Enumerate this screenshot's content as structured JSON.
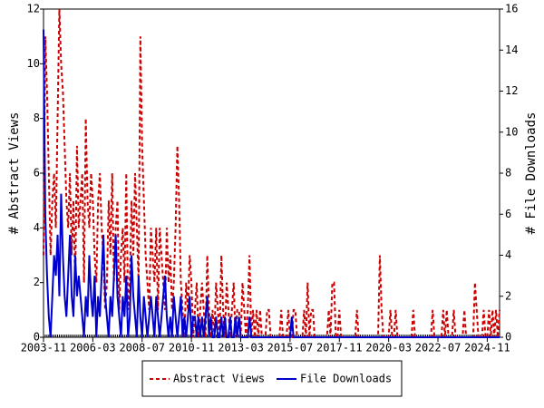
{
  "chart_data": {
    "type": "line",
    "x": [
      "2003-11",
      "2003-12",
      "2004-01",
      "2004-02",
      "2004-03",
      "2004-04",
      "2004-05",
      "2004-06",
      "2004-07",
      "2004-08",
      "2004-09",
      "2004-10",
      "2004-11",
      "2004-12",
      "2005-01",
      "2005-02",
      "2005-03",
      "2005-04",
      "2005-05",
      "2005-06",
      "2005-07",
      "2005-08",
      "2005-09",
      "2005-10",
      "2005-11",
      "2005-12",
      "2006-01",
      "2006-02",
      "2006-03",
      "2006-04",
      "2006-05",
      "2006-06",
      "2006-07",
      "2006-08",
      "2006-09",
      "2006-10",
      "2006-11",
      "2006-12",
      "2007-01",
      "2007-02",
      "2007-03",
      "2007-04",
      "2007-05",
      "2007-06",
      "2007-07",
      "2007-08",
      "2007-09",
      "2007-10",
      "2007-11",
      "2007-12",
      "2008-01",
      "2008-02",
      "2008-03",
      "2008-04",
      "2008-05",
      "2008-06",
      "2008-07",
      "2008-08",
      "2008-09",
      "2008-10",
      "2008-11",
      "2008-12",
      "2009-01",
      "2009-02",
      "2009-03",
      "2009-04",
      "2009-05",
      "2009-06",
      "2009-07",
      "2009-08",
      "2009-09",
      "2009-10",
      "2009-11",
      "2009-12",
      "2010-01",
      "2010-02",
      "2010-03",
      "2010-04",
      "2010-05",
      "2010-06",
      "2010-07",
      "2010-08",
      "2010-09",
      "2010-10",
      "2010-11",
      "2010-12",
      "2011-01",
      "2011-02",
      "2011-03",
      "2011-04",
      "2011-05",
      "2011-06",
      "2011-07",
      "2011-08",
      "2011-09",
      "2011-10",
      "2011-11",
      "2011-12",
      "2012-01",
      "2012-02",
      "2012-03",
      "2012-04",
      "2012-05",
      "2012-06",
      "2012-07",
      "2012-08",
      "2012-09",
      "2012-10",
      "2012-11",
      "2012-12",
      "2013-01",
      "2013-02",
      "2013-03",
      "2013-04",
      "2013-05",
      "2013-06",
      "2013-07",
      "2013-08",
      "2013-09",
      "2013-10",
      "2013-11",
      "2013-12",
      "2014-01",
      "2014-02",
      "2014-03",
      "2014-04",
      "2014-05",
      "2014-06",
      "2014-07",
      "2014-08",
      "2014-09",
      "2014-10",
      "2014-11",
      "2014-12",
      "2015-01",
      "2015-02",
      "2015-03",
      "2015-04",
      "2015-05",
      "2015-06",
      "2015-07",
      "2015-08",
      "2015-09",
      "2015-10",
      "2015-11",
      "2015-12",
      "2016-01",
      "2016-02",
      "2016-03",
      "2016-04",
      "2016-05",
      "2016-06",
      "2016-07",
      "2016-08",
      "2016-09",
      "2016-10",
      "2016-11",
      "2016-12",
      "2017-01",
      "2017-02",
      "2017-03",
      "2017-04",
      "2017-05",
      "2017-06",
      "2017-07",
      "2017-08",
      "2017-09",
      "2017-10",
      "2017-11",
      "2017-12",
      "2018-01",
      "2018-02",
      "2018-03",
      "2018-04",
      "2018-05",
      "2018-06",
      "2018-07",
      "2018-08",
      "2018-09",
      "2018-10",
      "2018-11",
      "2018-12",
      "2019-01",
      "2019-02",
      "2019-03",
      "2019-04",
      "2019-05",
      "2019-06",
      "2019-07",
      "2019-08",
      "2019-09",
      "2019-10",
      "2019-11",
      "2019-12",
      "2020-01",
      "2020-02",
      "2020-03",
      "2020-04",
      "2020-05",
      "2020-06",
      "2020-07",
      "2020-08",
      "2020-09",
      "2020-10",
      "2020-11",
      "2020-12",
      "2021-01",
      "2021-02",
      "2021-03",
      "2021-04",
      "2021-05",
      "2021-06",
      "2021-07",
      "2021-08",
      "2021-09",
      "2021-10",
      "2021-11",
      "2021-12",
      "2022-01",
      "2022-02",
      "2022-03",
      "2022-04",
      "2022-05",
      "2022-06",
      "2022-07",
      "2022-08",
      "2022-09",
      "2022-10",
      "2022-11",
      "2022-12",
      "2023-01",
      "2023-02",
      "2023-03",
      "2023-04",
      "2023-05",
      "2023-06",
      "2023-07",
      "2023-08",
      "2023-09",
      "2023-10",
      "2023-11",
      "2023-12",
      "2024-01",
      "2024-02",
      "2024-03",
      "2024-04",
      "2024-05",
      "2024-06",
      "2024-07",
      "2024-08",
      "2024-09",
      "2024-10",
      "2024-11",
      "2024-12",
      "2025-01",
      "2025-02",
      "2025-03",
      "2025-04",
      "2025-05",
      "2025-06"
    ],
    "xticks": [
      "2003-11",
      "2006-03",
      "2008-07",
      "2010-11",
      "2013-03",
      "2015-07",
      "2017-11",
      "2020-03",
      "2022-07",
      "2024-11"
    ],
    "ylabel": "# Abstract Views",
    "y2label": "# File Downloads",
    "ylim": [
      0,
      12
    ],
    "yticks": [
      0,
      2,
      4,
      6,
      8,
      10,
      12
    ],
    "y2lim": [
      0,
      16
    ],
    "y2ticks": [
      0,
      2,
      4,
      6,
      8,
      10,
      12,
      14,
      16
    ],
    "series": [
      {
        "name": "Abstract Views",
        "color": "#cc0000",
        "dashed": true,
        "values": [
          3,
          11,
          9,
          6,
          3,
          5,
          6,
          4,
          8,
          12,
          10,
          9,
          7,
          5,
          4,
          6,
          3,
          5,
          2,
          7,
          4,
          5,
          6,
          2,
          8,
          5,
          4,
          6,
          5,
          3,
          2,
          5,
          6,
          4,
          3,
          1,
          2,
          5,
          3,
          6,
          2,
          4,
          5,
          1,
          3,
          4,
          2,
          6,
          1,
          2,
          5,
          3,
          6,
          4,
          2,
          11,
          7,
          5,
          3,
          2,
          1,
          4,
          3,
          2,
          4,
          1,
          4,
          3,
          2,
          1,
          4,
          2,
          3,
          1,
          2,
          4,
          7,
          5,
          2,
          1,
          0,
          2,
          1,
          3,
          2,
          0,
          1,
          2,
          0,
          1,
          2,
          1,
          0,
          3,
          1,
          0,
          1,
          0,
          2,
          1,
          0,
          3,
          1,
          0,
          2,
          1,
          0,
          1,
          2,
          0,
          1,
          1,
          0,
          2,
          1,
          0,
          1,
          3,
          0,
          1,
          0,
          1,
          0,
          1,
          0,
          0,
          0,
          1,
          1,
          0,
          0,
          0,
          0,
          0,
          0,
          1,
          0,
          0,
          0,
          1,
          0,
          0,
          1,
          1,
          0,
          0,
          0,
          0,
          1,
          0,
          2,
          0,
          1,
          1,
          0,
          0,
          0,
          0,
          0,
          0,
          0,
          0,
          1,
          0,
          2,
          2,
          0,
          0,
          1,
          0,
          0,
          0,
          0,
          0,
          0,
          0,
          0,
          0,
          1,
          0,
          0,
          0,
          0,
          0,
          0,
          0,
          0,
          0,
          0,
          0,
          0,
          3,
          1,
          0,
          0,
          0,
          0,
          1,
          0,
          0,
          1,
          0,
          0,
          0,
          0,
          0,
          0,
          0,
          0,
          0,
          1,
          0,
          0,
          0,
          0,
          0,
          0,
          0,
          0,
          0,
          0,
          1,
          0,
          0,
          0,
          0,
          0,
          1,
          0,
          1,
          0,
          0,
          0,
          1,
          0,
          0,
          0,
          0,
          0,
          1,
          0,
          0,
          0,
          0,
          0,
          2,
          1,
          0,
          0,
          0,
          1,
          0,
          0,
          1,
          0,
          1,
          0,
          1,
          0,
          1
        ]
      },
      {
        "name": "File Downloads",
        "color": "#0000cc",
        "axis": "y2",
        "values": [
          15,
          6,
          3,
          1,
          0,
          2,
          4,
          3,
          5,
          2,
          7,
          4,
          2,
          1,
          3,
          5,
          2,
          1,
          4,
          2,
          3,
          2,
          1,
          0,
          2,
          1,
          4,
          2,
          1,
          3,
          0,
          2,
          1,
          3,
          5,
          2,
          1,
          0,
          2,
          1,
          3,
          5,
          2,
          1,
          0,
          2,
          1,
          3,
          0,
          1,
          4,
          2,
          1,
          0,
          3,
          1,
          0,
          2,
          1,
          0,
          1,
          2,
          1,
          0,
          2,
          1,
          0,
          1,
          2,
          3,
          1,
          0,
          1,
          0,
          2,
          1,
          0,
          1,
          2,
          0,
          1,
          0,
          1,
          2,
          0,
          1,
          1,
          0,
          1,
          0,
          1,
          0,
          1,
          2,
          0,
          1,
          0,
          0,
          1,
          0,
          0,
          1,
          0,
          1,
          0,
          0,
          1,
          0,
          0,
          1,
          0,
          1,
          0,
          0,
          0,
          0,
          0,
          1,
          0,
          0,
          0,
          0,
          0,
          0,
          0,
          0,
          0,
          0,
          0,
          0,
          0,
          0,
          0,
          0,
          0,
          0,
          0,
          0,
          0,
          0,
          0,
          1,
          0,
          0,
          0,
          0,
          0,
          0,
          0,
          0,
          0,
          0,
          0,
          0,
          0,
          0,
          0,
          0,
          0,
          0,
          0,
          0,
          0,
          0,
          0,
          0,
          0,
          0,
          0,
          0,
          0,
          0,
          0,
          0,
          0,
          0,
          0,
          0,
          0,
          0,
          0,
          0,
          0,
          0,
          0,
          0,
          0,
          0,
          0,
          0,
          0,
          0,
          0,
          0,
          0,
          0,
          0,
          0,
          0,
          0,
          0,
          0,
          0,
          0,
          0,
          0,
          0,
          0,
          0,
          0,
          0,
          0,
          0,
          0,
          0,
          0,
          0,
          0,
          0,
          0,
          0,
          0,
          0,
          0,
          0,
          0,
          0,
          0,
          0,
          0,
          0,
          0,
          0,
          0,
          0,
          0,
          0,
          0,
          0,
          0,
          0,
          0,
          0,
          0,
          0,
          0,
          0,
          0,
          0,
          0,
          0,
          0,
          0,
          0,
          0,
          0,
          0,
          0,
          0,
          0
        ]
      }
    ]
  }
}
